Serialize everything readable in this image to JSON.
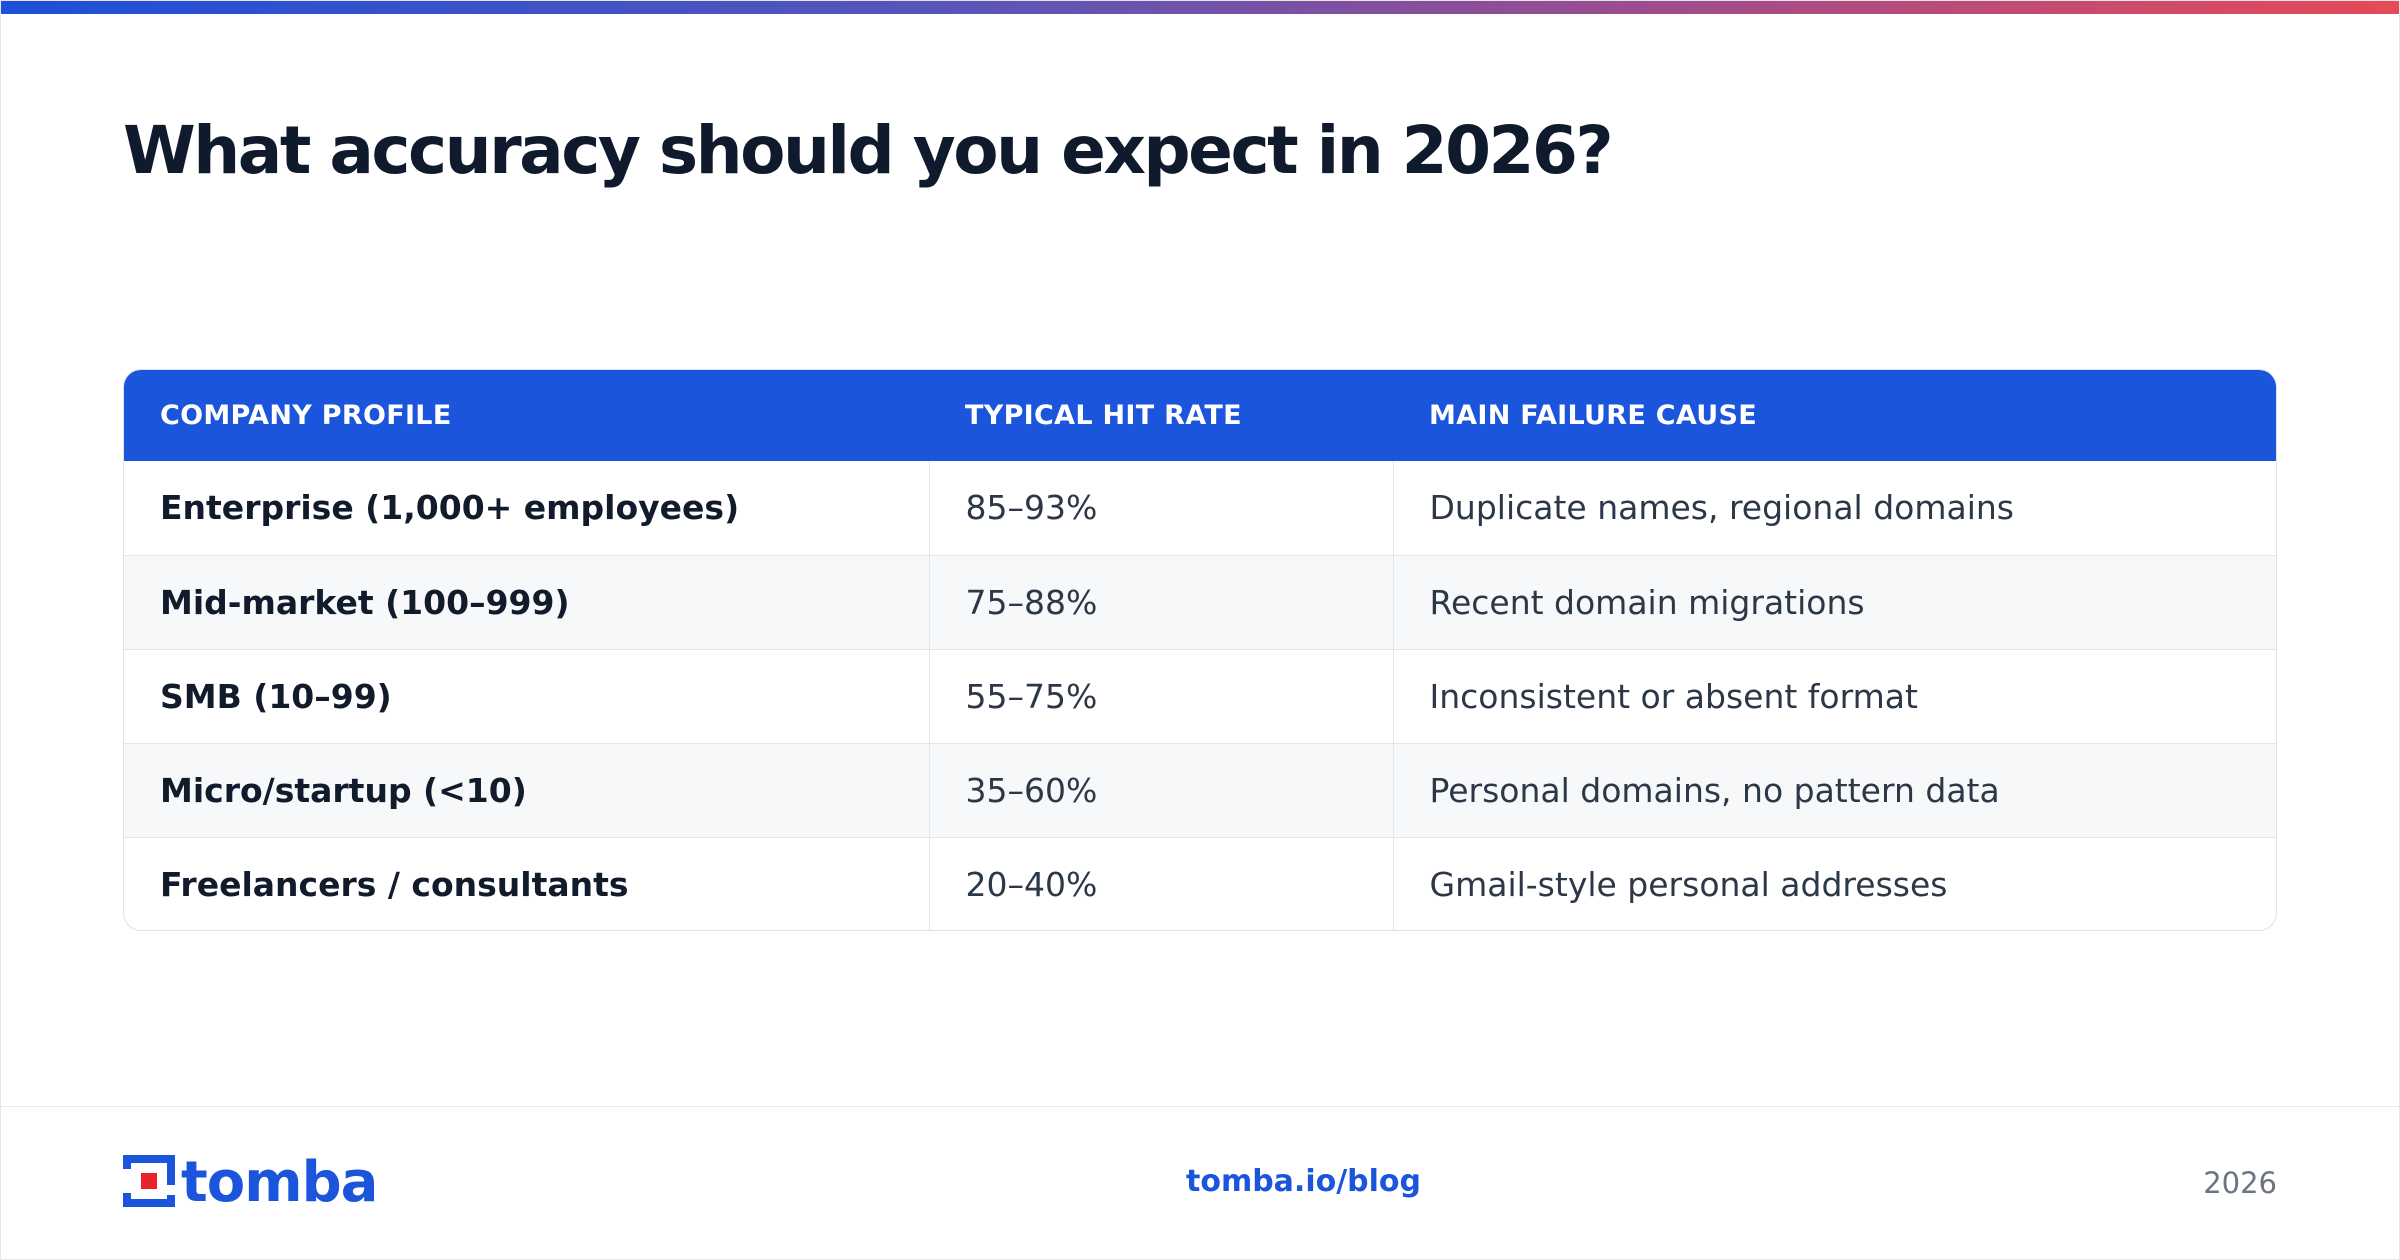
{
  "header": {
    "title": "What accuracy should you expect in 2026?"
  },
  "table": {
    "columns": [
      "COMPANY PROFILE",
      "TYPICAL HIT RATE",
      "MAIN FAILURE CAUSE"
    ],
    "rows": [
      {
        "profile": "Enterprise (1,000+ employees)",
        "hit_rate": "85–93%",
        "failure_cause": "Duplicate names, regional domains"
      },
      {
        "profile": "Mid-market (100–999)",
        "hit_rate": "75–88%",
        "failure_cause": "Recent domain migrations"
      },
      {
        "profile": "SMB (10–99)",
        "hit_rate": "55–75%",
        "failure_cause": "Inconsistent or absent format"
      },
      {
        "profile": "Micro/startup (<10)",
        "hit_rate": "35–60%",
        "failure_cause": "Personal domains, no pattern data"
      },
      {
        "profile": "Freelancers / consultants",
        "hit_rate": "20–40%",
        "failure_cause": "Gmail-style personal addresses"
      }
    ]
  },
  "footer": {
    "logo_text": "tomba",
    "link": "tomba.io/blog",
    "year": "2026"
  },
  "colors": {
    "brand_blue": "#1b55dc",
    "logo_red": "#e8232a",
    "title_text": "#101a2d"
  },
  "icons": {
    "logo_mark": "tomba-logo-icon"
  }
}
